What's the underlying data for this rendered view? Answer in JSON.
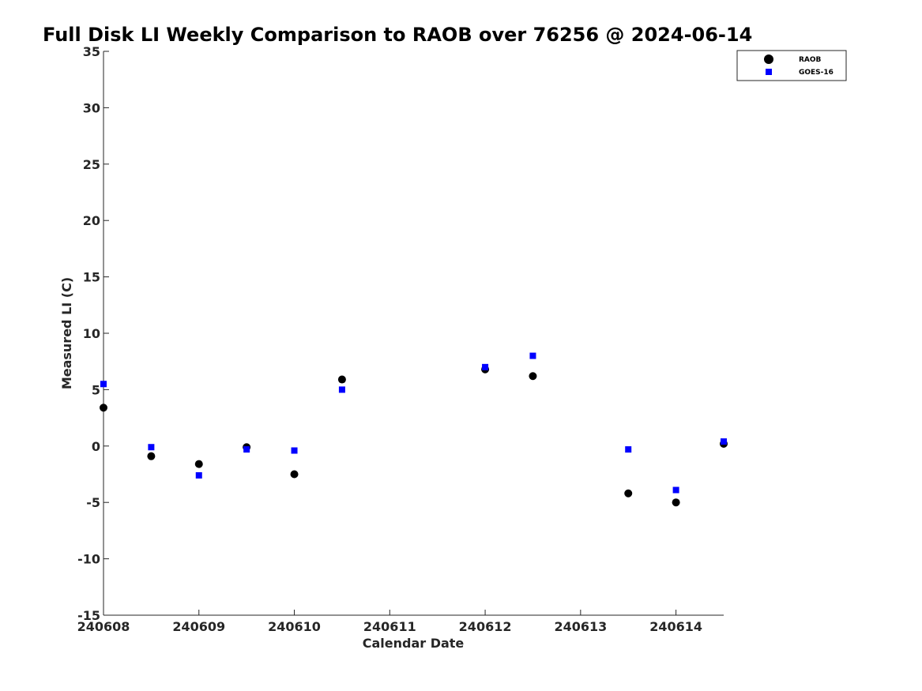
{
  "chart_data": {
    "type": "scatter",
    "title": "Full Disk LI Weekly Comparison to RAOB over 76256 @ 2024-06-14",
    "xlabel": "Calendar Date",
    "ylabel": "Measured LI (C)",
    "xlim": [
      240608,
      240614.5
    ],
    "ylim": [
      -15,
      35
    ],
    "x_ticks": [
      {
        "value": 240608,
        "label": "240608"
      },
      {
        "value": 240609,
        "label": "240609"
      },
      {
        "value": 240610,
        "label": "240610"
      },
      {
        "value": 240611,
        "label": "240611"
      },
      {
        "value": 240612,
        "label": "240612"
      },
      {
        "value": 240613,
        "label": "240613"
      },
      {
        "value": 240614,
        "label": "240614"
      }
    ],
    "y_ticks": [
      {
        "value": 35,
        "label": "35"
      },
      {
        "value": 30,
        "label": "30"
      },
      {
        "value": 25,
        "label": "25"
      },
      {
        "value": 20,
        "label": "20"
      },
      {
        "value": 15,
        "label": "15"
      },
      {
        "value": 10,
        "label": "10"
      },
      {
        "value": 5,
        "label": "5"
      },
      {
        "value": 0,
        "label": "0"
      },
      {
        "value": -5,
        "label": "-5"
      },
      {
        "value": -10,
        "label": "-10"
      },
      {
        "value": -15,
        "label": "-15"
      }
    ],
    "grid": false,
    "legend_position": "top-right",
    "series": [
      {
        "name": "RAOB",
        "marker": "circle",
        "color": "#000000",
        "points": [
          {
            "x": 240608.0,
            "y": 3.4
          },
          {
            "x": 240608.5,
            "y": -0.9
          },
          {
            "x": 240609.0,
            "y": -1.6
          },
          {
            "x": 240609.5,
            "y": -0.1
          },
          {
            "x": 240610.0,
            "y": -2.5
          },
          {
            "x": 240610.5,
            "y": 5.9
          },
          {
            "x": 240612.0,
            "y": 6.8
          },
          {
            "x": 240612.5,
            "y": 6.2
          },
          {
            "x": 240613.5,
            "y": -4.2
          },
          {
            "x": 240614.0,
            "y": -5.0
          },
          {
            "x": 240614.5,
            "y": 0.2
          }
        ]
      },
      {
        "name": "GOES-16",
        "marker": "square",
        "color": "#0000ff",
        "points": [
          {
            "x": 240608.0,
            "y": 5.5
          },
          {
            "x": 240608.5,
            "y": -0.1
          },
          {
            "x": 240609.0,
            "y": -2.6
          },
          {
            "x": 240609.5,
            "y": -0.3
          },
          {
            "x": 240610.0,
            "y": -0.4
          },
          {
            "x": 240610.5,
            "y": 5.0
          },
          {
            "x": 240612.0,
            "y": 7.0
          },
          {
            "x": 240612.5,
            "y": 8.0
          },
          {
            "x": 240613.5,
            "y": -0.3
          },
          {
            "x": 240614.0,
            "y": -3.9
          },
          {
            "x": 240614.5,
            "y": 0.4
          }
        ]
      }
    ]
  }
}
